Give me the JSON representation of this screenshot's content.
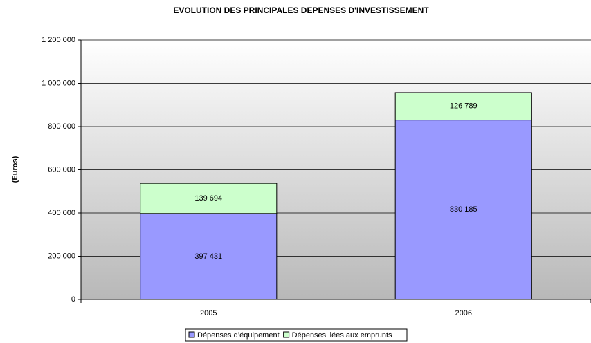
{
  "chart_data": {
    "type": "stacked_bar",
    "title": "EVOLUTION DES PRINCIPALES DEPENSES D'INVESTISSEMENT",
    "y_label": "(Euros)",
    "categories": [
      "2005",
      "2006"
    ],
    "series": [
      {
        "name": "Dépenses d’équipement",
        "color": "#9999ff",
        "values": [
          397431,
          830185
        ],
        "value_labels": [
          "397 431",
          "830 185"
        ]
      },
      {
        "name": "Dépenses liées aux emprunts",
        "color": "#ccffcc",
        "values": [
          139694,
          126789
        ],
        "value_labels": [
          "139 694",
          "126 789"
        ]
      }
    ],
    "ylim": [
      0,
      1200000
    ],
    "yticks": [
      0,
      {
        "value": 200000,
        "label": "200 000"
      },
      {
        "value": 400000,
        "label": "400 000"
      },
      {
        "value": 600000,
        "label": "600 000"
      },
      {
        "value": 800000,
        "label": "800 000"
      },
      {
        "value": 1000000,
        "label": "1 000 000"
      },
      {
        "value": 1200000,
        "label": "1 200 000"
      }
    ],
    "grid": true,
    "legend": "bottom"
  }
}
